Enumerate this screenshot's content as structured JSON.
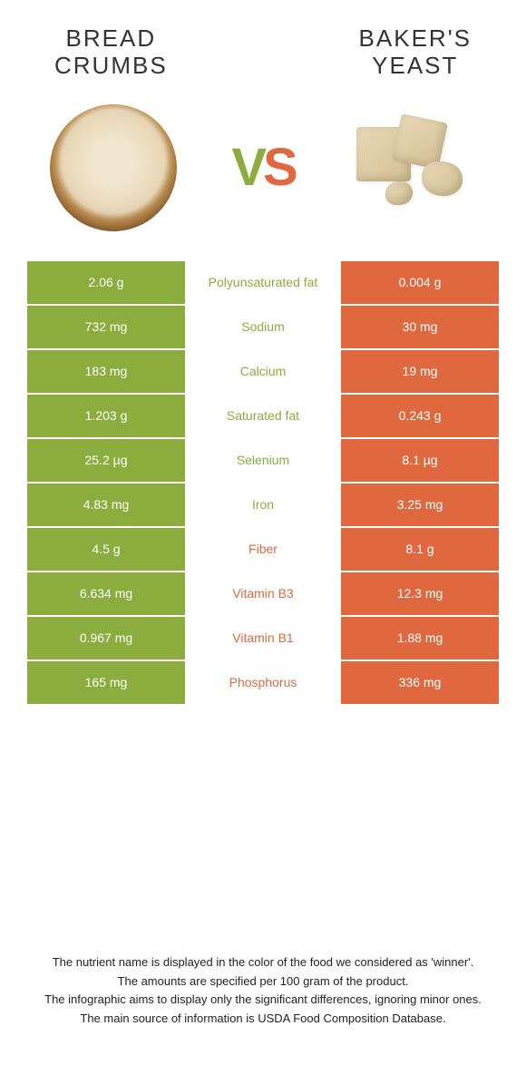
{
  "colors": {
    "green": "#8aad3e",
    "orange": "#e0683f"
  },
  "title_left_l1": "BREAD",
  "title_left_l2": "CRUMBS",
  "title_right_l1": "BAKER'S",
  "title_right_l2": "YEAST",
  "vs_v": "V",
  "vs_s": "S",
  "rows": [
    {
      "nutrient": "Polyunsaturated fat",
      "left": "2.06 g",
      "right": "0.004 g",
      "winner": "left"
    },
    {
      "nutrient": "Sodium",
      "left": "732 mg",
      "right": "30 mg",
      "winner": "left"
    },
    {
      "nutrient": "Calcium",
      "left": "183 mg",
      "right": "19 mg",
      "winner": "left"
    },
    {
      "nutrient": "Saturated fat",
      "left": "1.203 g",
      "right": "0.243 g",
      "winner": "left"
    },
    {
      "nutrient": "Selenium",
      "left": "25.2 µg",
      "right": "8.1 µg",
      "winner": "left"
    },
    {
      "nutrient": "Iron",
      "left": "4.83 mg",
      "right": "3.25 mg",
      "winner": "left"
    },
    {
      "nutrient": "Fiber",
      "left": "4.5 g",
      "right": "8.1 g",
      "winner": "right"
    },
    {
      "nutrient": "Vitamin B3",
      "left": "6.634 mg",
      "right": "12.3 mg",
      "winner": "right"
    },
    {
      "nutrient": "Vitamin B1",
      "left": "0.967 mg",
      "right": "1.88 mg",
      "winner": "right"
    },
    {
      "nutrient": "Phosphorus",
      "left": "165 mg",
      "right": "336 mg",
      "winner": "right"
    }
  ],
  "footer": [
    "The nutrient name is displayed in the color of the food we considered as 'winner'.",
    "The amounts are specified per 100 gram of the product.",
    "The infographic aims to display only the significant differences, ignoring minor ones.",
    "The main source of information is USDA Food Composition Database."
  ]
}
